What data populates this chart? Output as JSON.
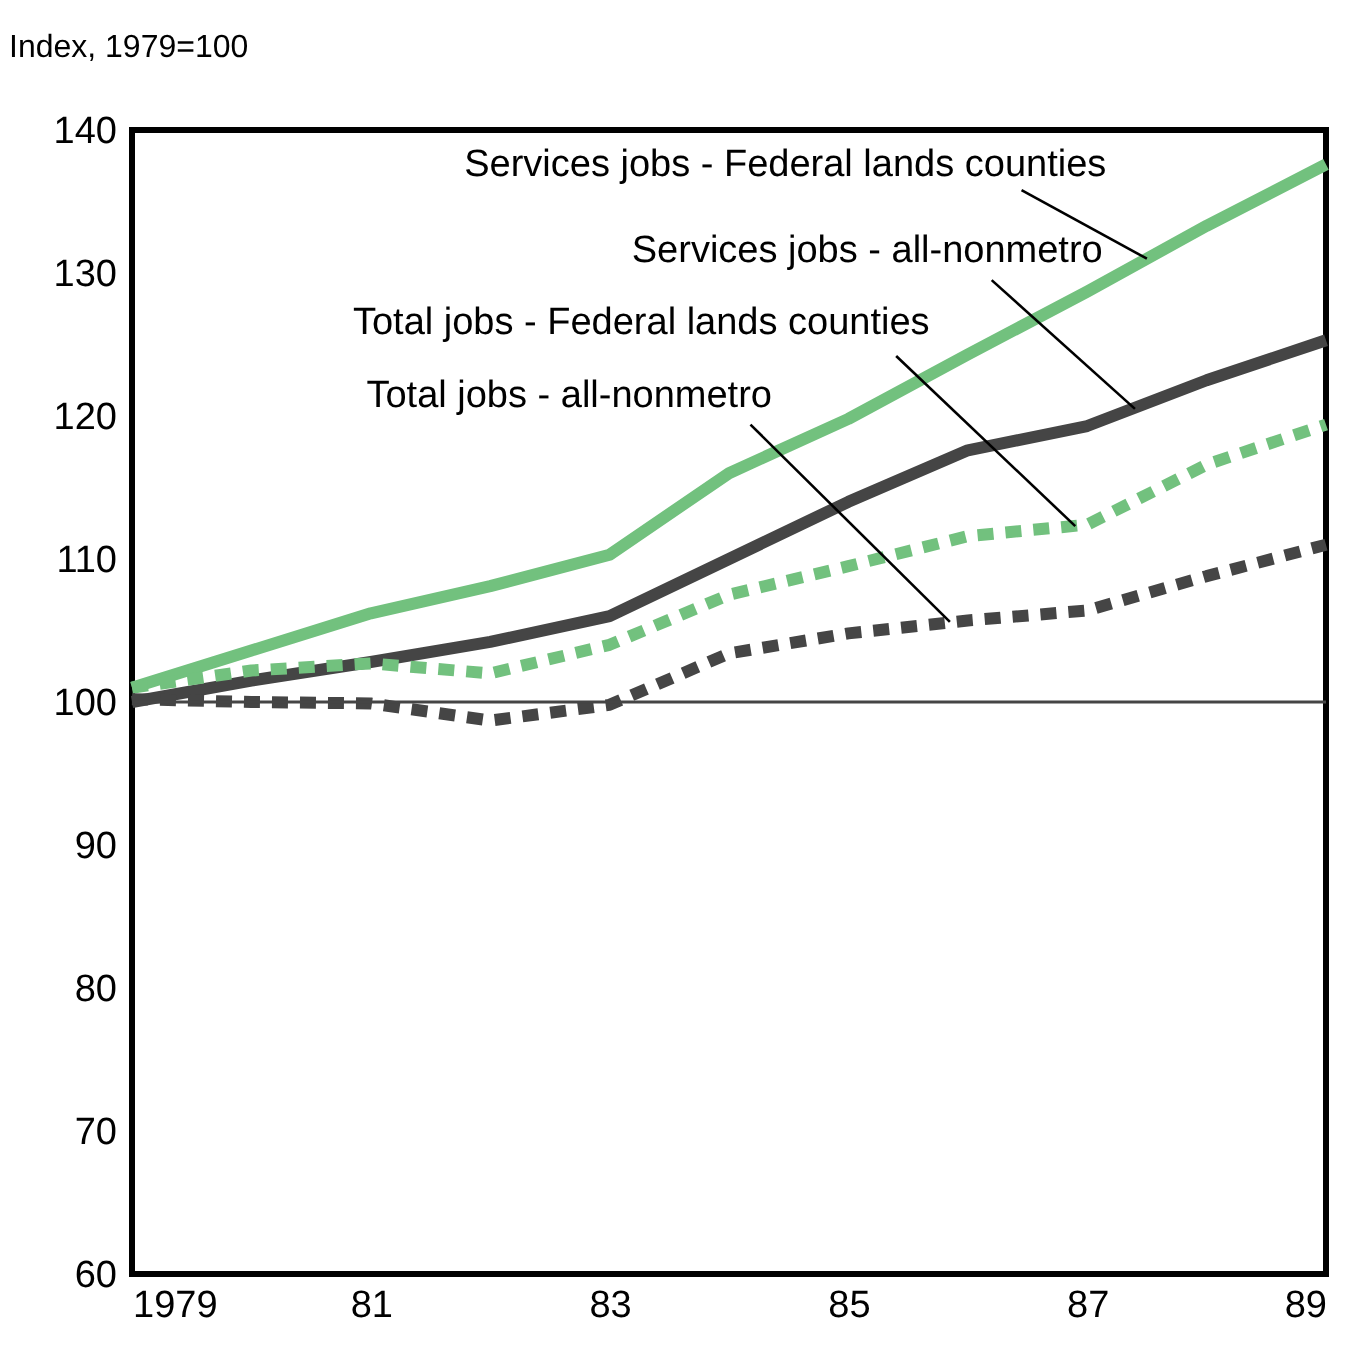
{
  "chart_data": {
    "type": "line",
    "ylabel": "Index,  1979=100",
    "x": [
      1979,
      1980,
      1981,
      1982,
      1983,
      1984,
      1985,
      1986,
      1987,
      1988,
      1989
    ],
    "series": [
      {
        "color": "#72c17e",
        "line_style": "solid",
        "values": [
          101,
          103.6,
          106.2,
          108.1,
          110.3,
          116,
          119.8,
          124.3,
          128.7,
          133.3,
          137.6
        ]
      },
      {
        "color": "#454545",
        "line_style": "solid",
        "values": [
          100,
          101.5,
          102.8,
          104.2,
          106,
          110,
          114,
          117.6,
          119.3,
          122.5,
          125.3
        ]
      },
      {
        "color": "#72c17e",
        "line_style": "dashed",
        "values": [
          101,
          102.2,
          102.7,
          102,
          104,
          107.5,
          109.5,
          111.6,
          112.4,
          116.6,
          119.4
        ]
      },
      {
        "color": "#454545",
        "line_style": "dashed",
        "values": [
          100.2,
          100,
          99.9,
          98.7,
          99.8,
          103.4,
          104.8,
          105.7,
          106.4,
          108.8,
          111
        ]
      }
    ],
    "xlim": [
      1979,
      1989
    ],
    "xticks": [
      1979,
      {
        "value": 1981,
        "label": "81"
      },
      {
        "value": 1983,
        "label": "83"
      },
      {
        "value": 1985,
        "label": "85"
      },
      {
        "value": 1987,
        "label": "87"
      },
      {
        "value": 1989,
        "label": "89"
      }
    ],
    "ylim": [
      60,
      140
    ],
    "yticks": [
      60,
      70,
      80,
      90,
      100,
      110,
      120,
      130,
      140
    ],
    "ref_lines": [
      {
        "axis": "y",
        "value": 100,
        "color": "#454545"
      }
    ],
    "annotations": [
      {
        "text": "Services jobs  -  Federal lands counties",
        "x": 1987.5,
        "y": 131
      },
      {
        "text": "Services jobs  -  all-nonmetro",
        "x": 1987.4,
        "y": 120.5
      },
      {
        "text": "Total jobs  -  Federal lands counties",
        "x": 1986.9,
        "y": 112.3
      },
      {
        "text": "Total jobs  -  all-nonmetro",
        "x": 1985.85,
        "y": 105.6
      }
    ],
    "grid": false
  }
}
